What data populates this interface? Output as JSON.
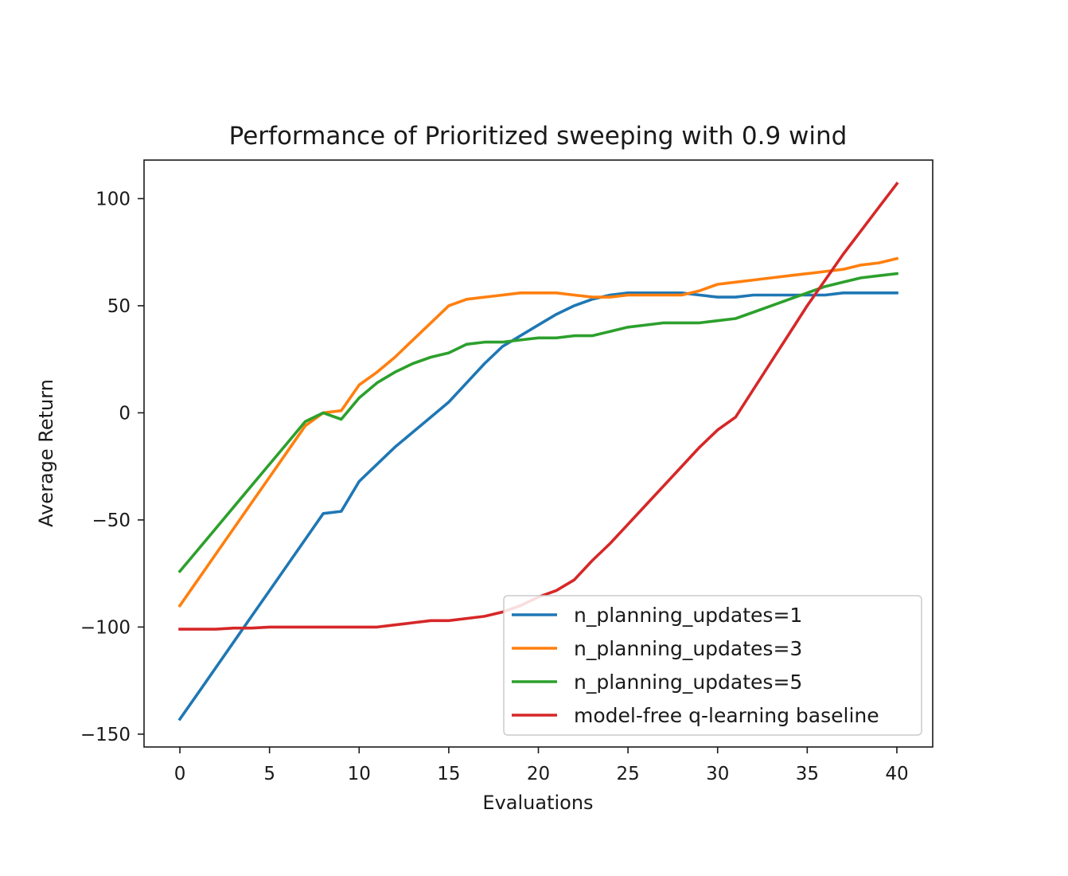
{
  "chart_data": {
    "type": "line",
    "title": "Performance of Prioritized sweeping with 0.9 wind",
    "xlabel": "Evaluations",
    "ylabel": "Average Return",
    "xlim": [
      -2,
      42
    ],
    "ylim": [
      -156,
      118
    ],
    "xticks": [
      0,
      5,
      10,
      15,
      20,
      25,
      30,
      35,
      40
    ],
    "yticks": [
      -150,
      -100,
      -50,
      0,
      50,
      100
    ],
    "xtick_labels": [
      "0",
      "5",
      "10",
      "15",
      "20",
      "25",
      "30",
      "35",
      "40"
    ],
    "ytick_labels": [
      "−150",
      "−100",
      "−50",
      "0",
      "50",
      "100"
    ],
    "grid": false,
    "legend_position": "lower-right",
    "x": [
      0,
      1,
      2,
      3,
      4,
      5,
      6,
      7,
      8,
      9,
      10,
      11,
      12,
      13,
      14,
      15,
      16,
      17,
      18,
      19,
      20,
      21,
      22,
      23,
      24,
      25,
      26,
      27,
      28,
      29,
      30,
      31,
      32,
      33,
      34,
      35,
      36,
      37,
      38,
      39,
      40
    ],
    "series": [
      {
        "name": "n_planning_updates=1",
        "color": "#1f77b4",
        "values": [
          -143,
          -131,
          -119,
          -107,
          -95,
          -83,
          -71,
          -59,
          -47,
          -46,
          -32,
          -24,
          -16,
          -9,
          -2,
          5,
          14,
          23,
          31,
          36,
          41,
          46,
          50,
          53,
          55,
          56,
          56,
          56,
          56,
          55,
          54,
          54,
          55,
          55,
          55,
          55,
          55,
          56,
          56,
          56,
          56
        ]
      },
      {
        "name": "n_planning_updates=3",
        "color": "#ff7f0e",
        "values": [
          -90,
          -78,
          -66,
          -54,
          -42,
          -30,
          -18,
          -6,
          0,
          1,
          13,
          19,
          26,
          34,
          42,
          50,
          53,
          54,
          55,
          56,
          56,
          56,
          55,
          54,
          54,
          55,
          55,
          55,
          55,
          57,
          60,
          61,
          62,
          63,
          64,
          65,
          66,
          67,
          69,
          70,
          72
        ]
      },
      {
        "name": "n_planning_updates=5",
        "color": "#2ca02c",
        "values": [
          -74,
          -64,
          -54,
          -44,
          -34,
          -24,
          -14,
          -4,
          0,
          -3,
          7,
          14,
          19,
          23,
          26,
          28,
          32,
          33,
          33,
          34,
          35,
          35,
          36,
          36,
          38,
          40,
          41,
          42,
          42,
          42,
          43,
          44,
          47,
          50,
          53,
          56,
          59,
          61,
          63,
          64,
          65
        ]
      },
      {
        "name": "model-free q-learning baseline",
        "color": "#d62728",
        "values": [
          -101,
          -101,
          -101,
          -100.5,
          -100.5,
          -100,
          -100,
          -100,
          -100,
          -100,
          -100,
          -100,
          -99,
          -98,
          -97,
          -97,
          -96,
          -95,
          -93,
          -90,
          -86,
          -83,
          -78,
          -69,
          -61,
          -52,
          -43,
          -34,
          -25,
          -16,
          -8,
          -2,
          11,
          24,
          37,
          50,
          62,
          74,
          85,
          96,
          107
        ]
      }
    ]
  }
}
